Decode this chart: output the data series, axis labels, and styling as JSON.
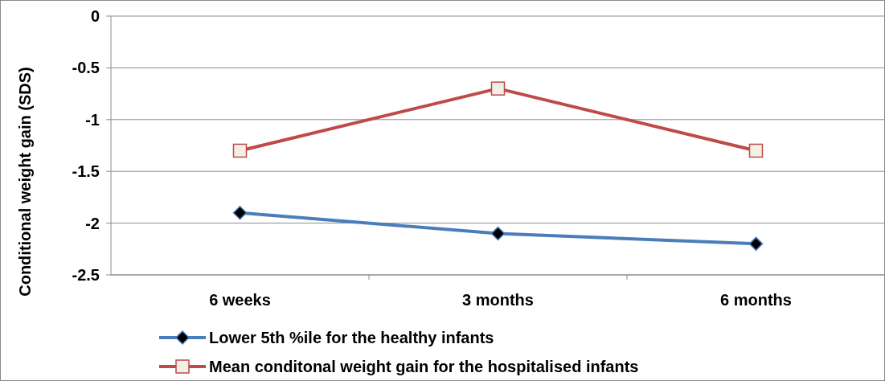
{
  "chart_data": {
    "type": "line",
    "ylabel": "Conditional weight gain (SDS)",
    "categories": [
      "6 weeks",
      "3 months",
      "6 months"
    ],
    "series": [
      {
        "name": "Lower 5th %ile for the healthy infants",
        "color": "#4a7ebb",
        "marker": "diamond",
        "values": [
          -1.9,
          -2.1,
          -2.2
        ]
      },
      {
        "name": "Mean conditonal weight gain for the hospitalised infants",
        "color": "#be4b48",
        "marker": "square",
        "values": [
          -1.3,
          -0.7,
          -1.3
        ]
      }
    ],
    "ylim": [
      -2.5,
      0
    ],
    "yticks": [
      0,
      -0.5,
      -1,
      -1.5,
      -2,
      -2.5
    ],
    "grid": "y",
    "legend": "bottom"
  }
}
